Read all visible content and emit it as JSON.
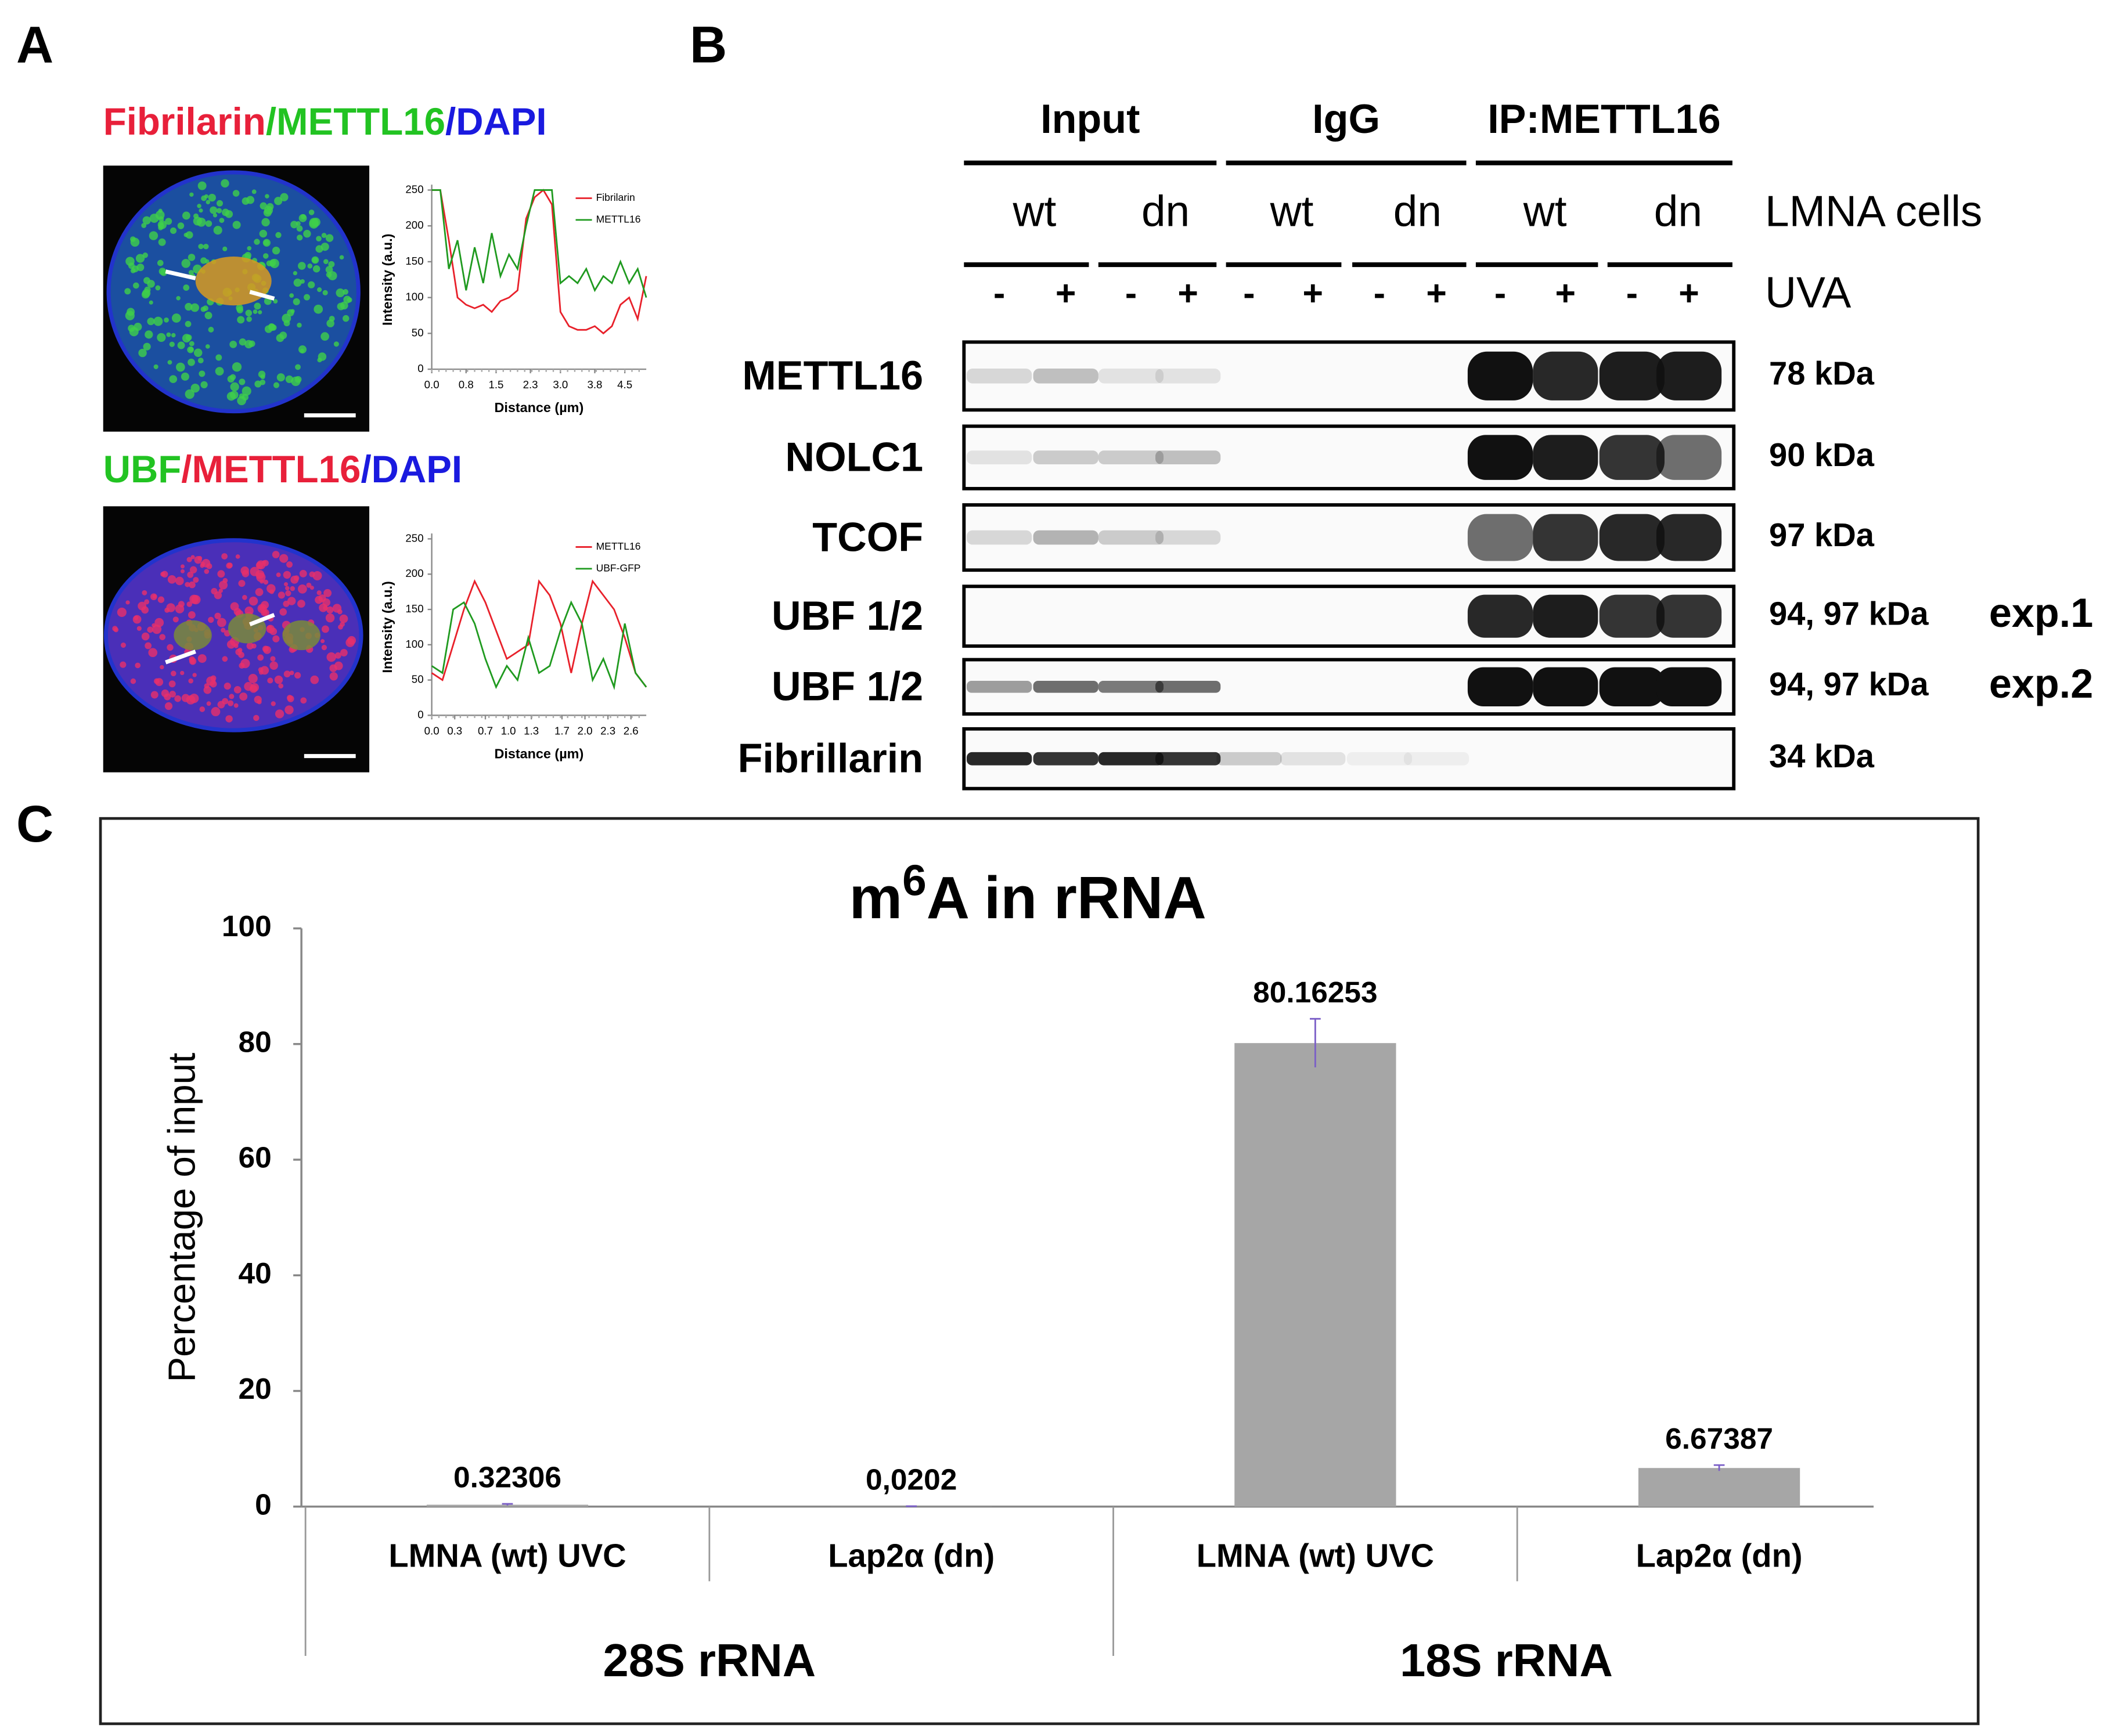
{
  "panel_labels": [
    "A",
    "B",
    "C"
  ],
  "panel_a": {
    "titles": [
      [
        {
          "text": "Fibrilarin",
          "color": "#e8203a"
        },
        {
          "text": "/METTL16",
          "color": "#22c322"
        },
        {
          "text": "/DAPI",
          "color": "#1a1adf"
        }
      ],
      [
        {
          "text": "UBF",
          "color": "#22c322"
        },
        {
          "text": "/METTL16",
          "color": "#e8203a"
        },
        {
          "text": "/DAPI",
          "color": "#1a1adf"
        }
      ]
    ]
  },
  "blot": {
    "groups": [
      "Input",
      "IgG",
      "IP:METTL16"
    ],
    "cells": [
      "wt",
      "dn",
      "wt",
      "dn",
      "wt",
      "dn"
    ],
    "cells_label": "LMNA cells",
    "uva": [
      "-",
      "+",
      "-",
      "+",
      "-",
      "+",
      "-",
      "+",
      "-",
      "+",
      "-",
      "+"
    ],
    "uva_label": "UVA",
    "rows": [
      {
        "name": "METTL16",
        "size": "78 kDa"
      },
      {
        "name": "NOLC1",
        "size": "90 kDa"
      },
      {
        "name": "TCOF",
        "size": "97 kDa"
      },
      {
        "name": "UBF 1/2",
        "size": "94, 97 kDa",
        "note": "exp.1"
      },
      {
        "name": "UBF 1/2",
        "size": "94, 97 kDa",
        "note": "exp.2"
      },
      {
        "name": "Fibrillarin",
        "size": "34 kDa"
      }
    ]
  },
  "chart_data": [
    {
      "type": "line",
      "xlabel": "Distance (µm)",
      "ylabel": "Intensity (a.u.)",
      "x": [
        0,
        0.2,
        0.4,
        0.6,
        0.8,
        1.0,
        1.2,
        1.4,
        1.6,
        1.8,
        2.0,
        2.2,
        2.4,
        2.6,
        2.8,
        3.0,
        3.2,
        3.4,
        3.6,
        3.8,
        4.0,
        4.2,
        4.4,
        4.6,
        4.8,
        5.0
      ],
      "xlim": [
        0,
        5.0
      ],
      "xticks": [
        {
          "value": 0,
          "label": "0.0"
        },
        0.8,
        1.5,
        2.3,
        {
          "value": 3,
          "label": "3.0"
        },
        3.8,
        4.5
      ],
      "ylim": [
        0,
        250
      ],
      "yticks": [
        0,
        50,
        100,
        150,
        200,
        250
      ],
      "legend": "upper right",
      "series": [
        {
          "name": "Fibrilarin",
          "color": "#e8202a",
          "values": [
            250,
            250,
            180,
            100,
            90,
            85,
            90,
            80,
            95,
            100,
            110,
            210,
            240,
            250,
            230,
            80,
            60,
            55,
            55,
            60,
            50,
            60,
            90,
            100,
            70,
            130
          ]
        },
        {
          "name": "METTL16",
          "color": "#1f9a1f",
          "values": [
            250,
            250,
            140,
            180,
            110,
            170,
            120,
            190,
            130,
            160,
            140,
            200,
            250,
            250,
            250,
            120,
            130,
            120,
            140,
            110,
            130,
            120,
            150,
            120,
            140,
            100
          ]
        }
      ]
    },
    {
      "type": "line",
      "xlabel": "Distance (µm)",
      "ylabel": "Intensity (a.u.)",
      "x": [
        0,
        0.14,
        0.28,
        0.42,
        0.56,
        0.7,
        0.84,
        0.98,
        1.12,
        1.26,
        1.4,
        1.54,
        1.68,
        1.82,
        1.96,
        2.1,
        2.24,
        2.38,
        2.52,
        2.66,
        2.8
      ],
      "xlim": [
        0,
        2.8
      ],
      "xticks": [
        {
          "value": 0,
          "label": "0.0"
        },
        0.3,
        0.7,
        {
          "value": 1,
          "label": "1.0"
        },
        1.3,
        1.7,
        {
          "value": 2,
          "label": "2.0"
        },
        2.3,
        2.6
      ],
      "ylim": [
        0,
        250
      ],
      "yticks": [
        0,
        50,
        100,
        150,
        200,
        250
      ],
      "legend": "upper right",
      "series": [
        {
          "name": "METTL16",
          "color": "#e8202a",
          "values": [
            60,
            50,
            100,
            150,
            190,
            160,
            120,
            80,
            90,
            100,
            190,
            170,
            130,
            60,
            130,
            190,
            170,
            150,
            110,
            60,
            40
          ]
        },
        {
          "name": "UBF-GFP",
          "color": "#1f9a1f",
          "values": [
            70,
            60,
            150,
            160,
            130,
            80,
            40,
            70,
            50,
            110,
            60,
            70,
            120,
            160,
            130,
            50,
            80,
            40,
            130,
            60,
            40
          ]
        }
      ]
    },
    {
      "type": "bar",
      "title": [
        "m",
        "6",
        "A in rRNA"
      ],
      "ylabel": "Percentage of input",
      "categories": [
        "LMNA (wt) UVC",
        "Lap2α (dn)",
        "LMNA (wt) UVC",
        "Lap2α (dn)"
      ],
      "groups": [
        "28S rRNA",
        "18S rRNA"
      ],
      "values": [
        0.32306,
        0.0202,
        80.16253,
        6.67387
      ],
      "value_labels": [
        "0.32306",
        "0,0202",
        "80.16253",
        "6.67387"
      ],
      "errors": [
        0.15,
        0.05,
        4.2,
        0.5
      ],
      "error_color": "#7b5fc7",
      "color": "#a6a6a6",
      "ylim": [
        0,
        100
      ],
      "yticks": [
        0,
        20,
        40,
        60,
        80,
        100
      ]
    }
  ]
}
